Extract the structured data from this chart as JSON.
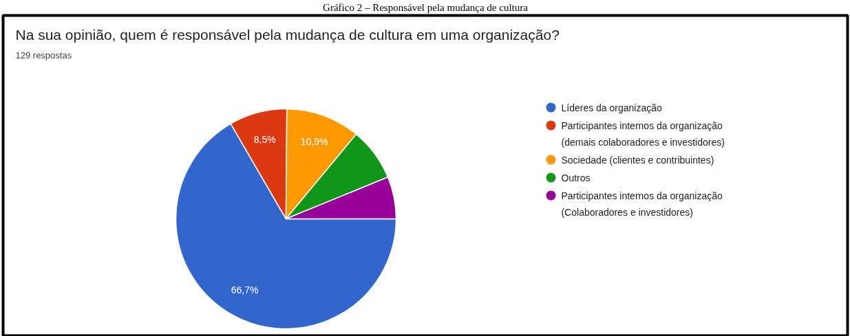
{
  "chart_data": {
    "type": "pie",
    "title": "Na sua opinião, quem é responsável pela mudança de cultura em uma organização?",
    "subtitle": "129 respostas",
    "annotations": [
      "Gráfico 2 – Responsável pela mudança de cultura"
    ],
    "categories": [
      "Líderes da organização",
      "Participantes internos da organização (demais colaboradores e investidores)",
      "Sociedade (clientes e contribuintes)",
      "Outros",
      "Participantes internos da organização (Colaboradores e investidores)"
    ],
    "values": [
      66.7,
      8.5,
      10.9,
      7.8,
      6.2
    ],
    "colors": [
      "#3366cc",
      "#dc3912",
      "#ff9900",
      "#109618",
      "#990099"
    ],
    "value_labels": [
      "66,7%",
      "8,5%",
      "10,9%",
      null,
      null
    ],
    "legend": "right"
  }
}
